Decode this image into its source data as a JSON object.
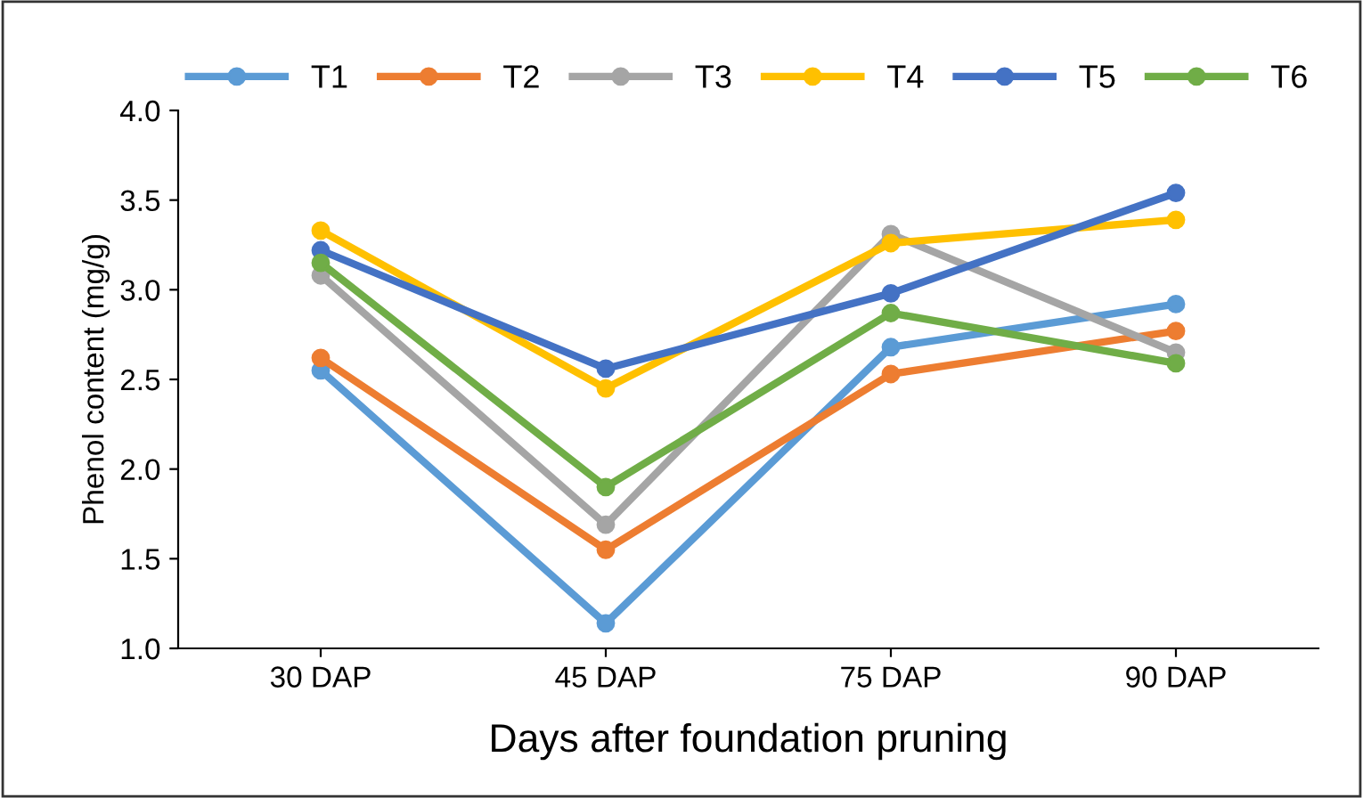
{
  "chart_data": {
    "type": "line",
    "xlabel": "Days after foundation pruning",
    "ylabel": "Phenol content (mg/g)",
    "categories": [
      "30 DAP",
      "45 DAP",
      "75 DAP",
      "90 DAP"
    ],
    "ylim": [
      1.0,
      4.0
    ],
    "yticks": [
      {
        "value": 1.0,
        "label": "1.0"
      },
      {
        "value": 1.5,
        "label": "1.5"
      },
      {
        "value": 2.0,
        "label": "2.0"
      },
      {
        "value": 2.5,
        "label": "2.5"
      },
      {
        "value": 3.0,
        "label": "3.0"
      },
      {
        "value": 3.5,
        "label": "3.5"
      },
      {
        "value": 4.0,
        "label": "4.0"
      }
    ],
    "grid": false,
    "legend": "top",
    "marker": "circle",
    "line_style": "solid",
    "series": [
      {
        "name": "T1",
        "color": "#5b9bd5",
        "values": [
          2.55,
          1.14,
          2.68,
          2.92
        ]
      },
      {
        "name": "T2",
        "color": "#ed7d31",
        "values": [
          2.62,
          1.55,
          2.53,
          2.77
        ]
      },
      {
        "name": "T3",
        "color": "#a5a5a5",
        "values": [
          3.08,
          1.69,
          3.31,
          2.65
        ]
      },
      {
        "name": "T4",
        "color": "#ffc000",
        "values": [
          3.33,
          2.45,
          3.26,
          3.39
        ]
      },
      {
        "name": "T5",
        "color": "#4472c4",
        "values": [
          3.22,
          2.56,
          2.98,
          3.54
        ]
      },
      {
        "name": "T6",
        "color": "#70ad47",
        "values": [
          3.15,
          1.9,
          2.87,
          2.59
        ]
      }
    ]
  }
}
